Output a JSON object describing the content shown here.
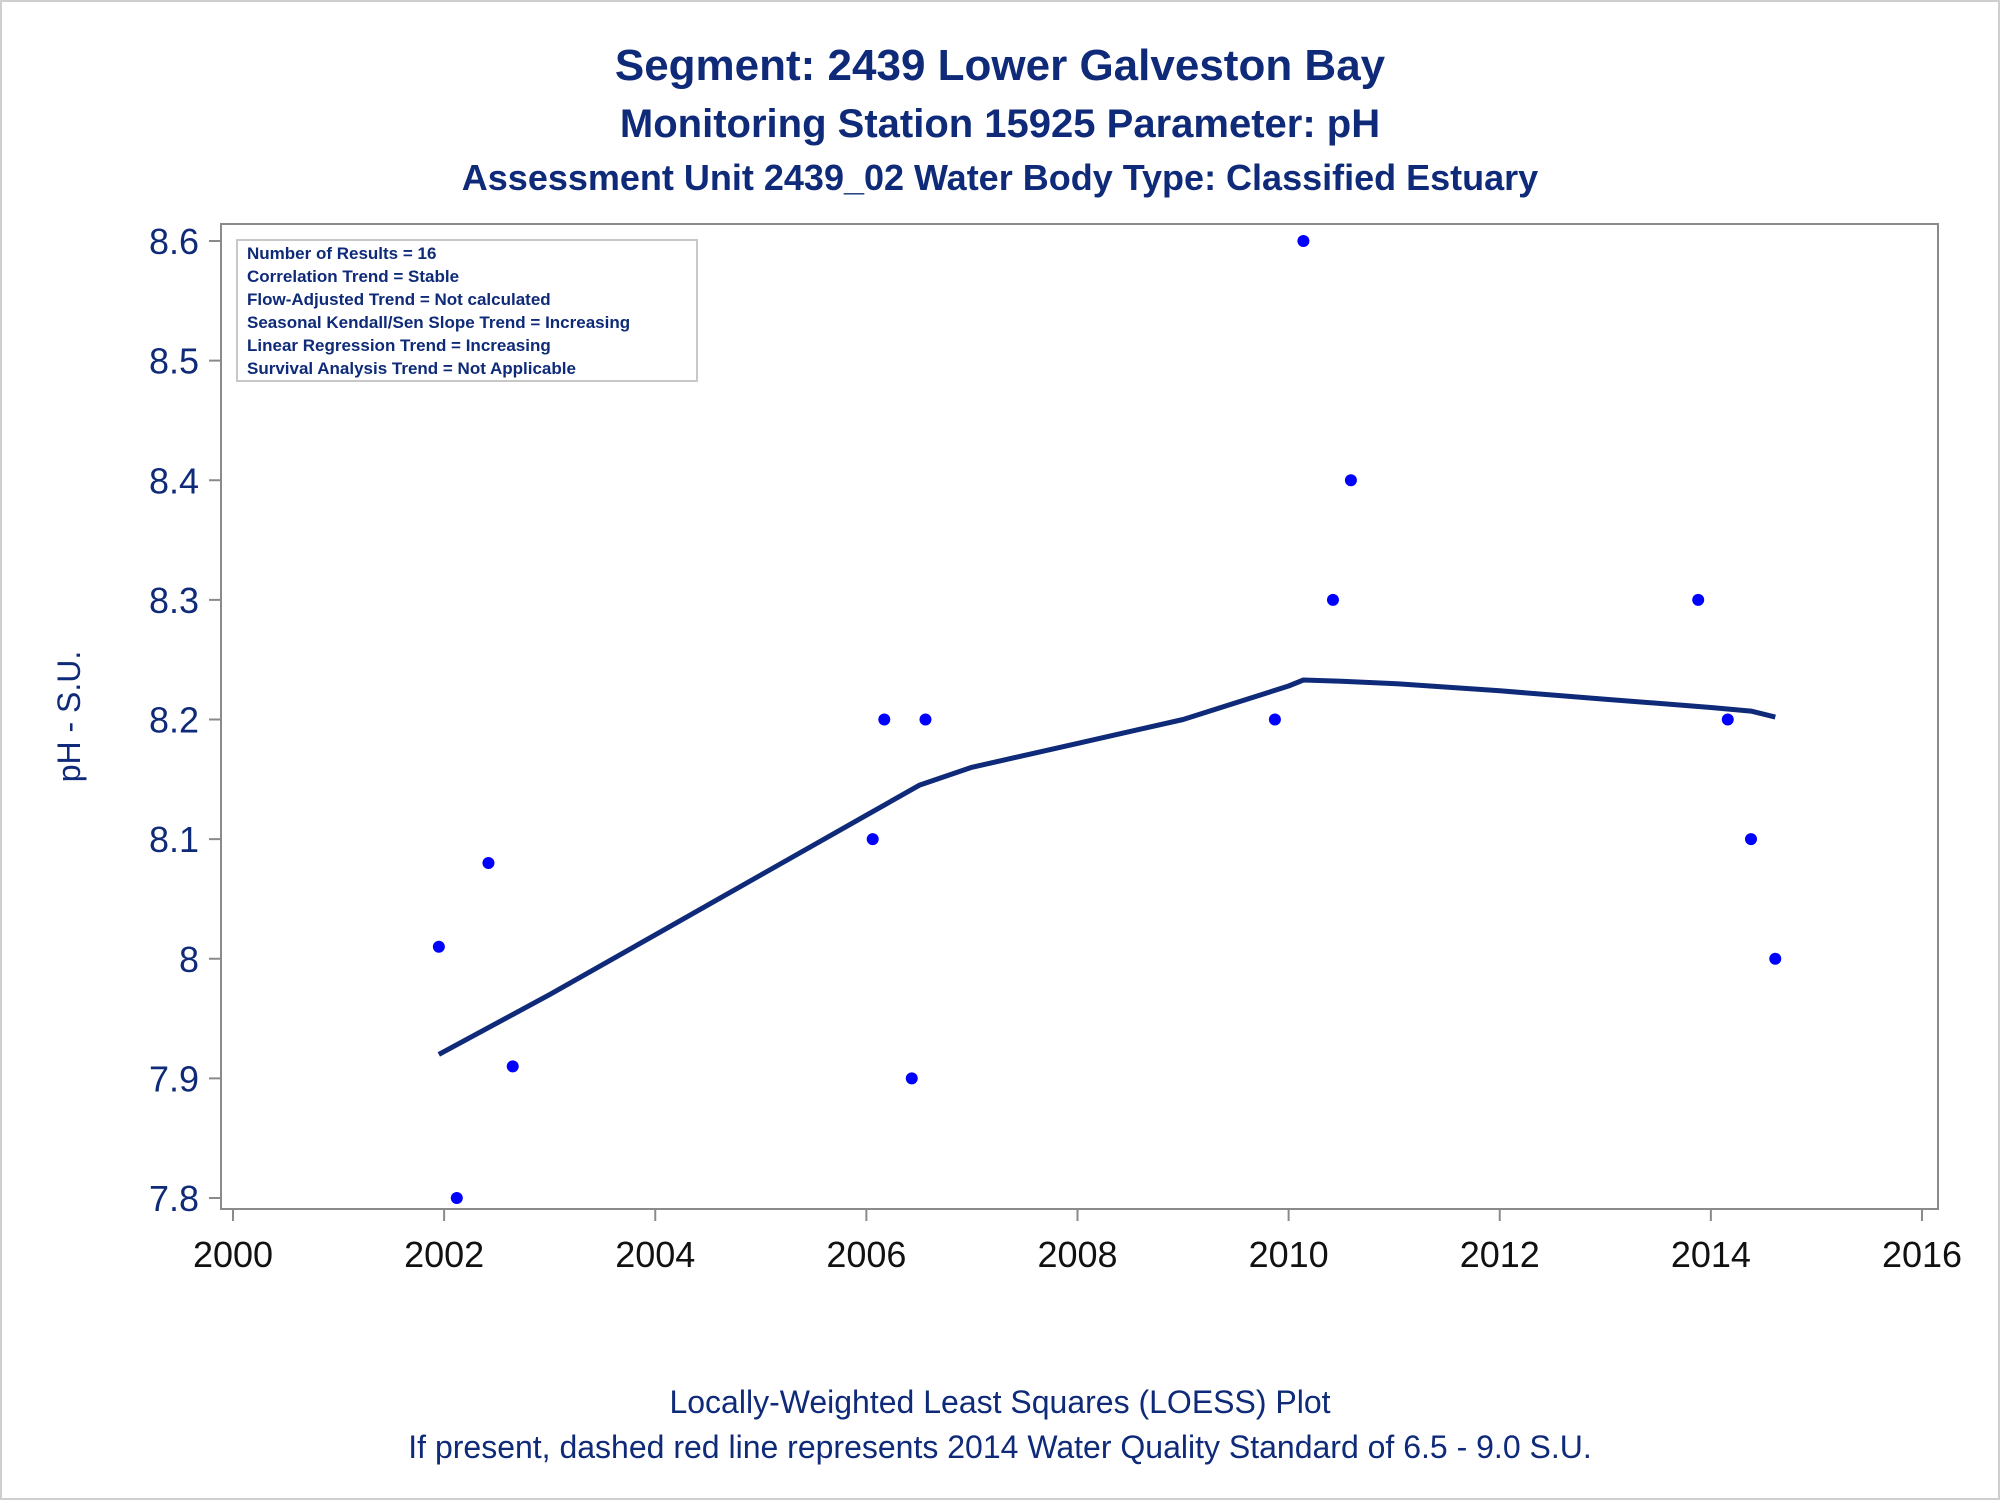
{
  "colors": {
    "title": "#0e2a78",
    "axis": "#8a8a8a",
    "tick_text": "#111111",
    "ylabel": "#0e2a78",
    "points": "#0000ff",
    "loess": "#0e2a78",
    "legend_border": "#c8c8c8"
  },
  "chart_data": {
    "type": "scatter",
    "title": "Segment: 2439  Lower Galveston Bay",
    "subtitle": "Monitoring Station 15925 Parameter: pH",
    "subtitle2": "Assessment Unit 2439_02   Water Body Type: Classified Estuary",
    "xlabel": "",
    "ylabel": "pH - S.U.",
    "xlim": [
      2000,
      2016
    ],
    "ylim": [
      7.8,
      8.6
    ],
    "xticks": [
      2000,
      2002,
      2004,
      2006,
      2008,
      2010,
      2012,
      2014,
      2016
    ],
    "yticks": [
      7.8,
      7.9,
      8.0,
      8.1,
      8.2,
      8.3,
      8.4,
      8.5,
      8.6
    ],
    "ytick_labels": [
      "7.8",
      "7.9",
      "8",
      "8.1",
      "8.2",
      "8.3",
      "8.4",
      "8.5",
      "8.6"
    ],
    "grid": false,
    "legend_position": "top-left",
    "legend": [
      "Number of Results = 16",
      "Correlation Trend = Stable",
      "Flow-Adjusted Trend = Not calculated",
      "Seasonal Kendall/Sen Slope Trend = Increasing",
      "Linear Regression Trend = Increasing",
      "Survival Analysis Trend = Not Applicable"
    ],
    "points": [
      {
        "x": 2001.95,
        "y": 8.01
      },
      {
        "x": 2002.12,
        "y": 7.8
      },
      {
        "x": 2002.42,
        "y": 8.08
      },
      {
        "x": 2002.65,
        "y": 7.91
      },
      {
        "x": 2006.06,
        "y": 8.1
      },
      {
        "x": 2006.17,
        "y": 8.2
      },
      {
        "x": 2006.43,
        "y": 7.9
      },
      {
        "x": 2006.56,
        "y": 8.2
      },
      {
        "x": 2009.87,
        "y": 8.2
      },
      {
        "x": 2010.14,
        "y": 8.6
      },
      {
        "x": 2010.42,
        "y": 8.3
      },
      {
        "x": 2010.59,
        "y": 8.4
      },
      {
        "x": 2013.88,
        "y": 8.3
      },
      {
        "x": 2014.16,
        "y": 8.2
      },
      {
        "x": 2014.38,
        "y": 8.1
      },
      {
        "x": 2014.61,
        "y": 8.0
      }
    ],
    "loess": [
      {
        "x": 2001.95,
        "y": 7.92
      },
      {
        "x": 2003.0,
        "y": 7.97
      },
      {
        "x": 2004.0,
        "y": 8.02
      },
      {
        "x": 2005.0,
        "y": 8.07
      },
      {
        "x": 2006.0,
        "y": 8.12
      },
      {
        "x": 2006.5,
        "y": 8.145
      },
      {
        "x": 2007.0,
        "y": 8.16
      },
      {
        "x": 2008.0,
        "y": 8.18
      },
      {
        "x": 2009.0,
        "y": 8.2
      },
      {
        "x": 2010.0,
        "y": 8.228
      },
      {
        "x": 2010.14,
        "y": 8.233
      },
      {
        "x": 2010.5,
        "y": 8.232
      },
      {
        "x": 2011.0,
        "y": 8.23
      },
      {
        "x": 2012.0,
        "y": 8.224
      },
      {
        "x": 2013.0,
        "y": 8.217
      },
      {
        "x": 2014.0,
        "y": 8.21
      },
      {
        "x": 2014.38,
        "y": 8.207
      },
      {
        "x": 2014.61,
        "y": 8.202
      }
    ],
    "footnote1": "Locally-Weighted Least Squares (LOESS) Plot",
    "footnote2": "If present, dashed red line represents 2014 Water Quality Standard of 6.5 - 9.0 S.U."
  }
}
